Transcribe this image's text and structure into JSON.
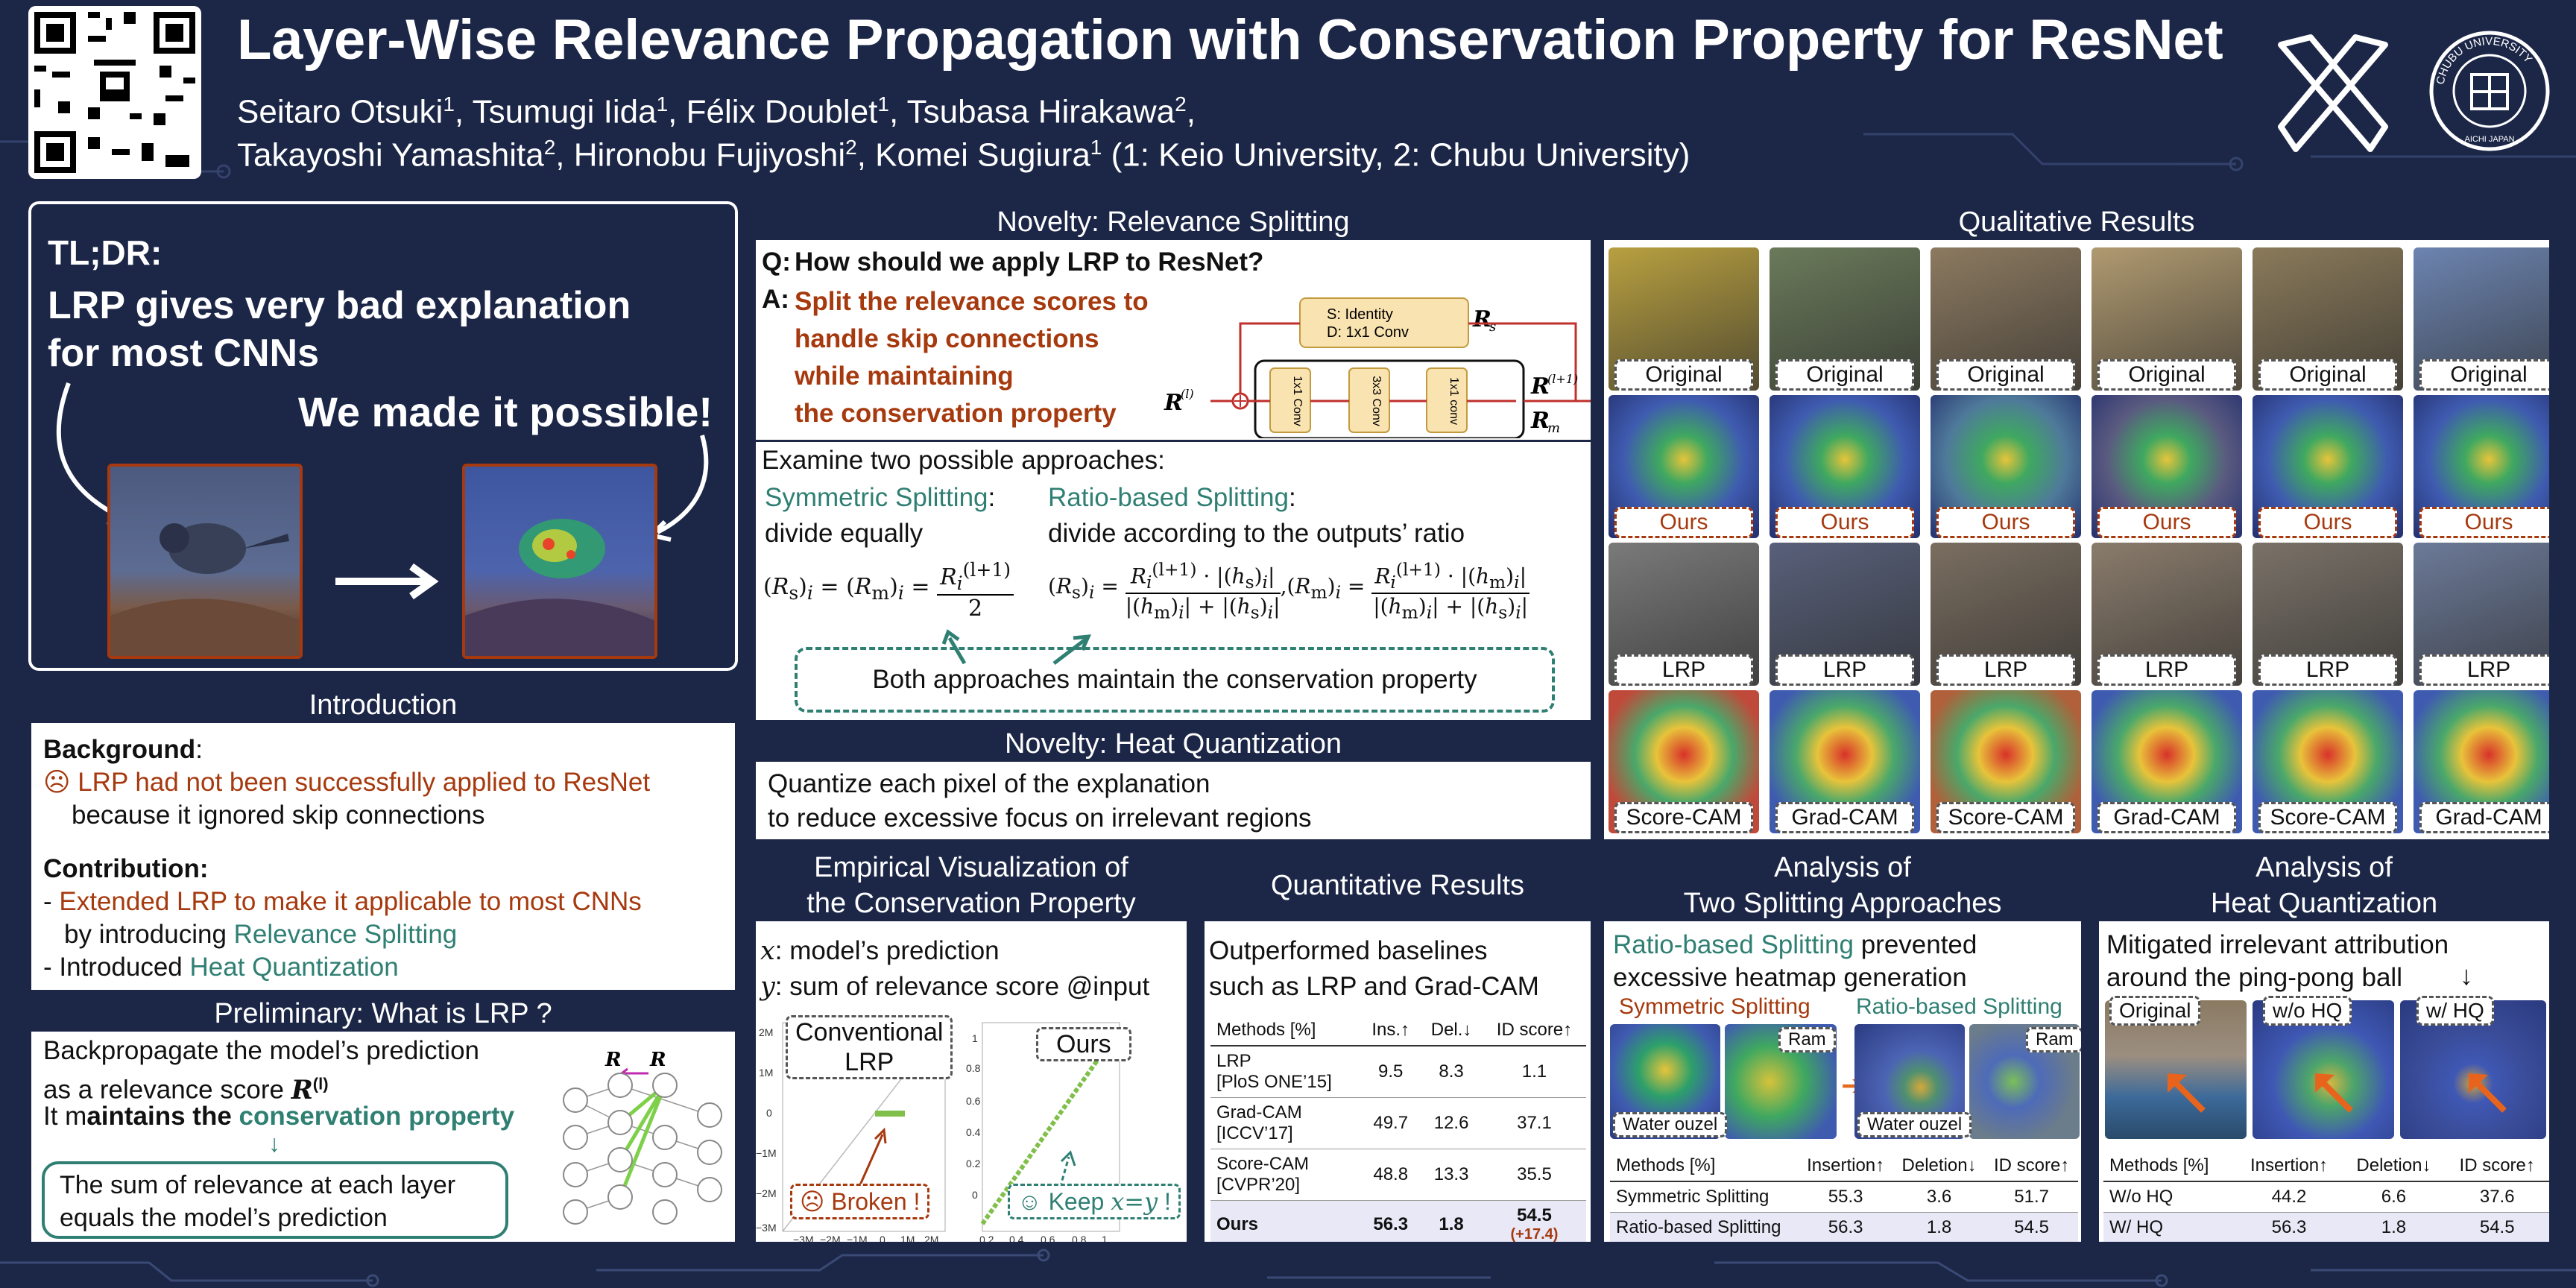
{
  "header": {
    "title": "Layer-Wise Relevance Propagation with Conservation Property for ResNet",
    "authors_line1": [
      "Seitaro Otsuki",
      "1",
      ", Tsumugi Iida",
      "1",
      ", Félix Doublet",
      "1",
      ", Tsubasa Hirakawa",
      "2",
      ","
    ],
    "authors_line2": [
      "Takayoshi Yamashita",
      "2",
      ", Hironobu Fujiyoshi",
      "2",
      ", Komei Sugiura",
      "1",
      " (1: Keio University, 2: Chubu University)"
    ],
    "logo_text": "CHUBU UNIVERSITY",
    "logo_subtext": "AICHI JAPAN"
  },
  "tldr": {
    "label": "TL;DR:",
    "headline1": "LRP gives very bad explanation",
    "headline2": "for most CNNs",
    "callout": "We made it possible!"
  },
  "introduction": {
    "header": "Introduction",
    "background_label": "Background",
    "background_point": "☹ LRP had not been successfully applied to ResNet",
    "background_point2": "because it ignored skip connections",
    "contribution_label": "Contribution:",
    "contrib1a": "- ",
    "contrib1b": "Extended LRP to make it applicable to most CNNs",
    "contrib1c": "by introducing ",
    "contrib1d": "Relevance Splitting",
    "contrib2a": "- Introduced ",
    "contrib2b": "Heat Quantization"
  },
  "preliminary": {
    "header": "Preliminary: What is LRP ?",
    "line1": "Backpropagate the model’s prediction",
    "line2": "as a relevance score",
    "line3a": "It m",
    "line3b": "aintains the ",
    "line3c": "conservation property",
    "box": [
      "The sum of relevance at each layer",
      "equals the model’s prediction"
    ]
  },
  "novelty_rs": {
    "header": "Novelty: Relevance Splitting",
    "q_label": "Q:",
    "question": "How should we apply LRP to ResNet?",
    "a_label": "A:",
    "answer": [
      "Split the relevance scores to",
      "handle skip connections",
      "while maintaining",
      "the conservation property"
    ],
    "diagram": {
      "skip_box": [
        "S: Identity",
        "D: 1x1 Conv"
      ],
      "blocks": [
        "1x1 Conv",
        "3x3 Conv",
        "1x1 conv"
      ]
    },
    "examine": "Examine two possible approaches:",
    "sym_label": "Symmetric Splitting",
    "sym_desc": "divide equally",
    "ratio_label": "Ratio-based Splitting",
    "ratio_desc": "divide according to the outputs’ ratio",
    "both": "Both approaches maintain the conservation property"
  },
  "novelty_hq": {
    "header": "Novelty: Heat Quantization",
    "lines": [
      "Quantize each pixel of the explanation",
      "to reduce excessive focus on irrelevant regions"
    ]
  },
  "qualitative": {
    "header": "Qualitative Results",
    "rows": [
      [
        "Original",
        "Original",
        "Original",
        "Original",
        "Original",
        "Original"
      ],
      [
        "Ours",
        "Ours",
        "Ours",
        "Ours",
        "Ours",
        "Ours"
      ],
      [
        "LRP",
        "LRP",
        "LRP",
        "LRP",
        "LRP",
        "LRP"
      ],
      [
        "Score-CAM",
        "Grad-CAM",
        "Score-CAM",
        "Grad-CAM",
        "Score-CAM",
        "Grad-CAM"
      ]
    ]
  },
  "empirical": {
    "header": [
      "Empirical Visualization of",
      "the Conservation Property"
    ],
    "x_desc": ": model’s prediction",
    "y_desc": ": sum of relevance score @input",
    "conv_label": [
      "Conventional",
      "LRP"
    ],
    "ours_label": "Ours",
    "broken": "☹ Broken !",
    "keep": "☺ Keep ",
    "keep_eq": "x=y",
    "keep_end": " !"
  },
  "quantitative": {
    "header": "Quantitative Results",
    "lines": [
      "Outperformed baselines",
      "such as LRP and Grad-CAM"
    ],
    "columns": [
      "Methods [%]",
      "Ins.↑",
      "Del.↓",
      "ID score↑"
    ],
    "rows": [
      {
        "method": [
          "LRP",
          "[PloS ONE’15]"
        ],
        "ins": "9.5",
        "del": "8.3",
        "id": "1.1"
      },
      {
        "method": [
          "Grad-CAM",
          "[ICCV’17]"
        ],
        "ins": "49.7",
        "del": "12.6",
        "id": "37.1"
      },
      {
        "method": [
          "Score-CAM",
          "[CVPR’20]"
        ],
        "ins": "48.8",
        "del": "13.3",
        "id": "35.5"
      }
    ],
    "ours": {
      "method": "Ours",
      "ins": "56.3",
      "del": "1.8",
      "id": "54.5",
      "gain": "(+17.4)"
    }
  },
  "analysis_split": {
    "header": [
      "Analysis of",
      "Two Splitting Approaches"
    ],
    "line1a": "Ratio-based Splitting",
    "line1b": " prevented",
    "line2": "excessive heatmap generation",
    "sym": "Symmetric Splitting",
    "ratio": "Ratio-based Splitting",
    "tag1": "Ram",
    "tag2": "Water ouzel",
    "columns": [
      "Methods [%]",
      "Insertion↑",
      "Deletion↓",
      "ID score↑"
    ],
    "rows": [
      [
        "Symmetric Splitting",
        "55.3",
        "3.6",
        "51.7"
      ],
      [
        "Ratio-based Splitting",
        "56.3",
        "1.8",
        "54.5"
      ]
    ]
  },
  "analysis_hq": {
    "header": [
      "Analysis of",
      "Heat Quantization"
    ],
    "lines": [
      "Mitigated irrelevant attribution",
      "around the ping-pong ball"
    ],
    "arrow": "↓",
    "labels": [
      "Original",
      "w/o HQ",
      "w/ HQ"
    ],
    "columns": [
      "Methods [%]",
      "Insertion↑",
      "Deletion↓",
      "ID score↑"
    ],
    "rows": [
      [
        "W/o HQ",
        "44.2",
        "6.6",
        "37.6"
      ],
      [
        "W/ HQ",
        "56.3",
        "1.8",
        "54.5"
      ]
    ]
  },
  "colors": {
    "navy": "#1c2748",
    "red": "#a6390e",
    "teal": "#2f7f73"
  }
}
